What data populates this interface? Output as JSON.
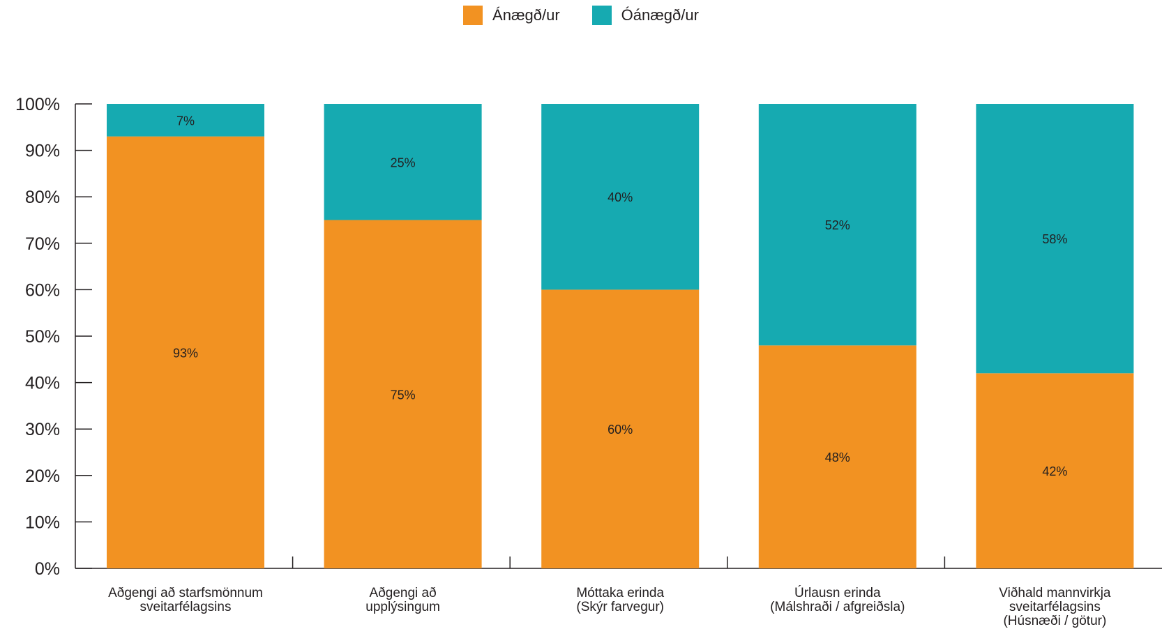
{
  "chart_data": {
    "type": "bar",
    "stacked": true,
    "percent": true,
    "categories": [
      [
        "Aðgengi að starfsmönnum",
        "sveitarfélagsins"
      ],
      [
        "Aðgengi að",
        "upplýsingum"
      ],
      [
        "Móttaka erinda",
        "(Skýr farvegur)"
      ],
      [
        "Úrlausn erinda",
        "(Málshraði / afgreiðsla)"
      ],
      [
        "Viðhald mannvirkja",
        "sveitarfélagsins",
        "(Húsnæði / götur)"
      ]
    ],
    "series": [
      {
        "name": "Ánægð/ur",
        "color": "#f29222",
        "values": [
          93,
          75,
          60,
          48,
          42
        ],
        "labels": [
          "93%",
          "75%",
          "60%",
          "48%",
          "42%"
        ]
      },
      {
        "name": "Óánægð/ur",
        "color": "#16aab1",
        "values": [
          7,
          25,
          40,
          52,
          58
        ],
        "labels": [
          "7%",
          "25%",
          "40%",
          "52%",
          "58%"
        ]
      }
    ],
    "ylim": [
      0,
      100
    ],
    "yticks": [
      "0%",
      "10%",
      "20%",
      "30%",
      "40%",
      "50%",
      "60%",
      "70%",
      "80%",
      "90%",
      "100%"
    ],
    "legend_position": "top-center",
    "grid": false
  }
}
